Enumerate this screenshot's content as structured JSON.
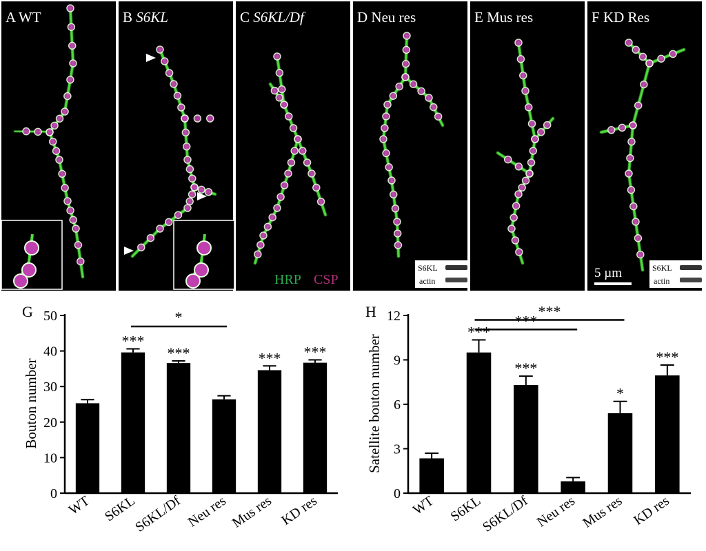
{
  "figure": {
    "scale_bar_label": "5 µm",
    "stain_labels": [
      {
        "text": "HRP",
        "color": "#2fa84f"
      },
      {
        "text": "CSP",
        "color": "#b0307a"
      }
    ],
    "blot_labels": [
      "S6KL",
      "actin"
    ],
    "colors": {
      "hrp_green": "#4fdc3c",
      "csp_magenta": "#c040b0",
      "bouton_white": "#e8ffe0",
      "panel_bg": "#000000"
    }
  },
  "panels": [
    {
      "letter": "A",
      "label": "WT",
      "italic": false
    },
    {
      "letter": "B",
      "label": "S6KL",
      "italic": true
    },
    {
      "letter": "C",
      "label": "S6KL/Df",
      "italic": true
    },
    {
      "letter": "D",
      "label": "Neu res",
      "italic": false
    },
    {
      "letter": "E",
      "label": "Mus res",
      "italic": false
    },
    {
      "letter": "F",
      "label": "KD Res",
      "italic": false
    }
  ],
  "chart_data": [
    {
      "panel": "G",
      "type": "bar",
      "ylabel": "Bouton number",
      "xlabel": "",
      "categories": [
        "WT",
        "S6KL",
        "S6KL/Df",
        "Neu res",
        "Mus res",
        "KD res"
      ],
      "values": [
        25.3,
        39.6,
        36.6,
        26.4,
        34.6,
        36.7
      ],
      "errors": [
        1.0,
        1.0,
        0.6,
        1.0,
        1.2,
        0.8
      ],
      "significance": [
        "",
        "***",
        "***",
        "",
        "***",
        "***"
      ],
      "ylim": [
        0,
        50
      ],
      "yticks": [
        0,
        10,
        20,
        30,
        40,
        50
      ],
      "comparisons": [
        {
          "from": "S6KL",
          "to": "Neu res",
          "label": "*"
        }
      ]
    },
    {
      "panel": "H",
      "type": "bar",
      "ylabel": "Satellite bouton number",
      "xlabel": "",
      "categories": [
        "WT",
        "S6KL",
        "S6KL/Df",
        "Neu res",
        "Mus res",
        "KD res"
      ],
      "values": [
        2.35,
        9.5,
        7.3,
        0.8,
        5.4,
        7.95
      ],
      "errors": [
        0.35,
        0.85,
        0.6,
        0.25,
        0.8,
        0.7
      ],
      "significance": [
        "",
        "***",
        "***",
        "",
        "*",
        "***"
      ],
      "ylim": [
        0,
        12
      ],
      "yticks": [
        0,
        3,
        6,
        9,
        12
      ],
      "comparisons": [
        {
          "from": "S6KL",
          "to": "Mus res",
          "label": "***"
        },
        {
          "from": "S6KL",
          "to": "Neu res",
          "label": "***"
        }
      ]
    }
  ]
}
